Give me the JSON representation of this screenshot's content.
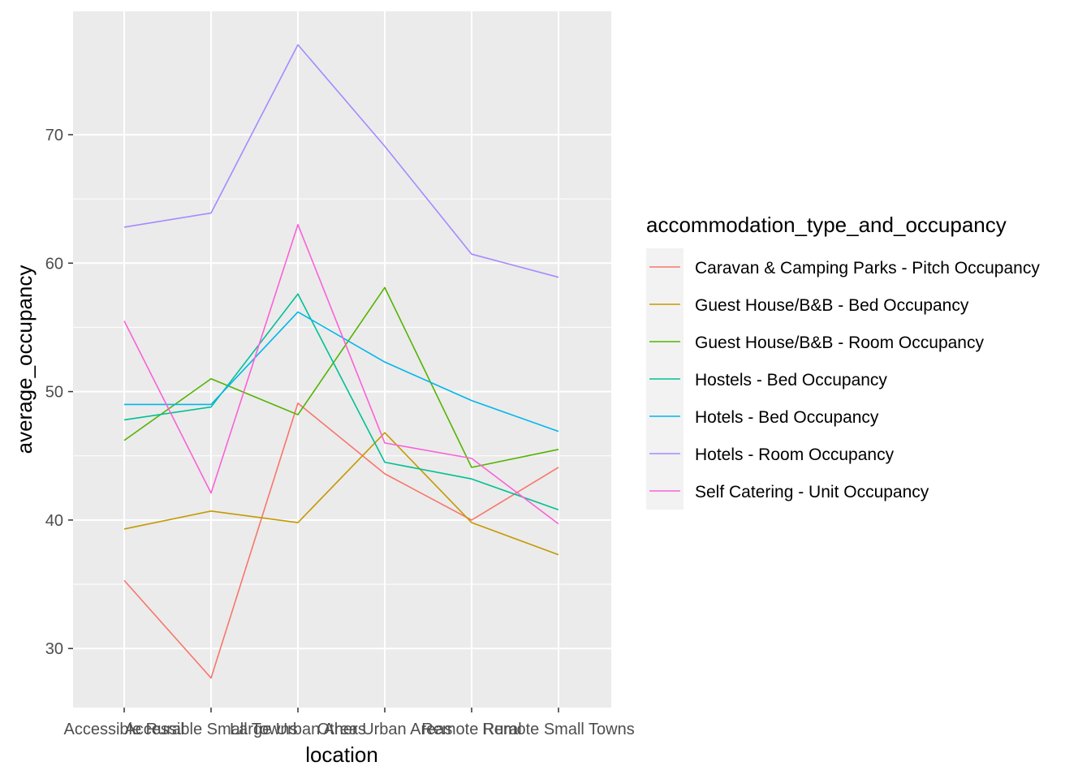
{
  "chart_data": {
    "type": "line",
    "xlabel": "location",
    "ylabel": "average_occupancy",
    "categories": [
      "Accessible Rural",
      "Accessible Small Towns",
      "Large Urban Areas",
      "Other Urban Areas",
      "Remote Rural",
      "Remote Small Towns"
    ],
    "ylim": [
      25.4,
      79.6
    ],
    "yticks": [
      30,
      40,
      50,
      60,
      70
    ],
    "grid": true,
    "legend_position": "right",
    "legend_title": "accommodation_type_and_occupancy",
    "series": [
      {
        "name": "Caravan & Camping Parks - Pitch Occupancy",
        "color": "#F8766D",
        "values": [
          35.3,
          27.7,
          49.1,
          43.6,
          40.0,
          44.1
        ]
      },
      {
        "name": "Guest House/B&B - Bed Occupancy",
        "color": "#C49A00",
        "values": [
          39.3,
          40.7,
          39.8,
          46.8,
          39.8,
          37.3
        ]
      },
      {
        "name": "Guest House/B&B - Room Occupancy",
        "color": "#53B400",
        "values": [
          46.2,
          51.0,
          48.2,
          58.1,
          44.1,
          45.5
        ]
      },
      {
        "name": "Hostels - Bed Occupancy",
        "color": "#00C094",
        "values": [
          47.8,
          48.8,
          57.6,
          44.5,
          43.2,
          40.8
        ]
      },
      {
        "name": "Hotels - Bed Occupancy",
        "color": "#00B6EB",
        "values": [
          49.0,
          49.0,
          56.2,
          52.3,
          49.3,
          46.9
        ]
      },
      {
        "name": "Hotels - Room Occupancy",
        "color": "#A58AFF",
        "values": [
          62.8,
          63.9,
          77.0,
          69.1,
          60.7,
          58.9
        ]
      },
      {
        "name": "Self Catering - Unit Occupancy",
        "color": "#FB61D7",
        "values": [
          55.5,
          42.1,
          63.0,
          46.0,
          44.8,
          39.7
        ]
      }
    ]
  }
}
